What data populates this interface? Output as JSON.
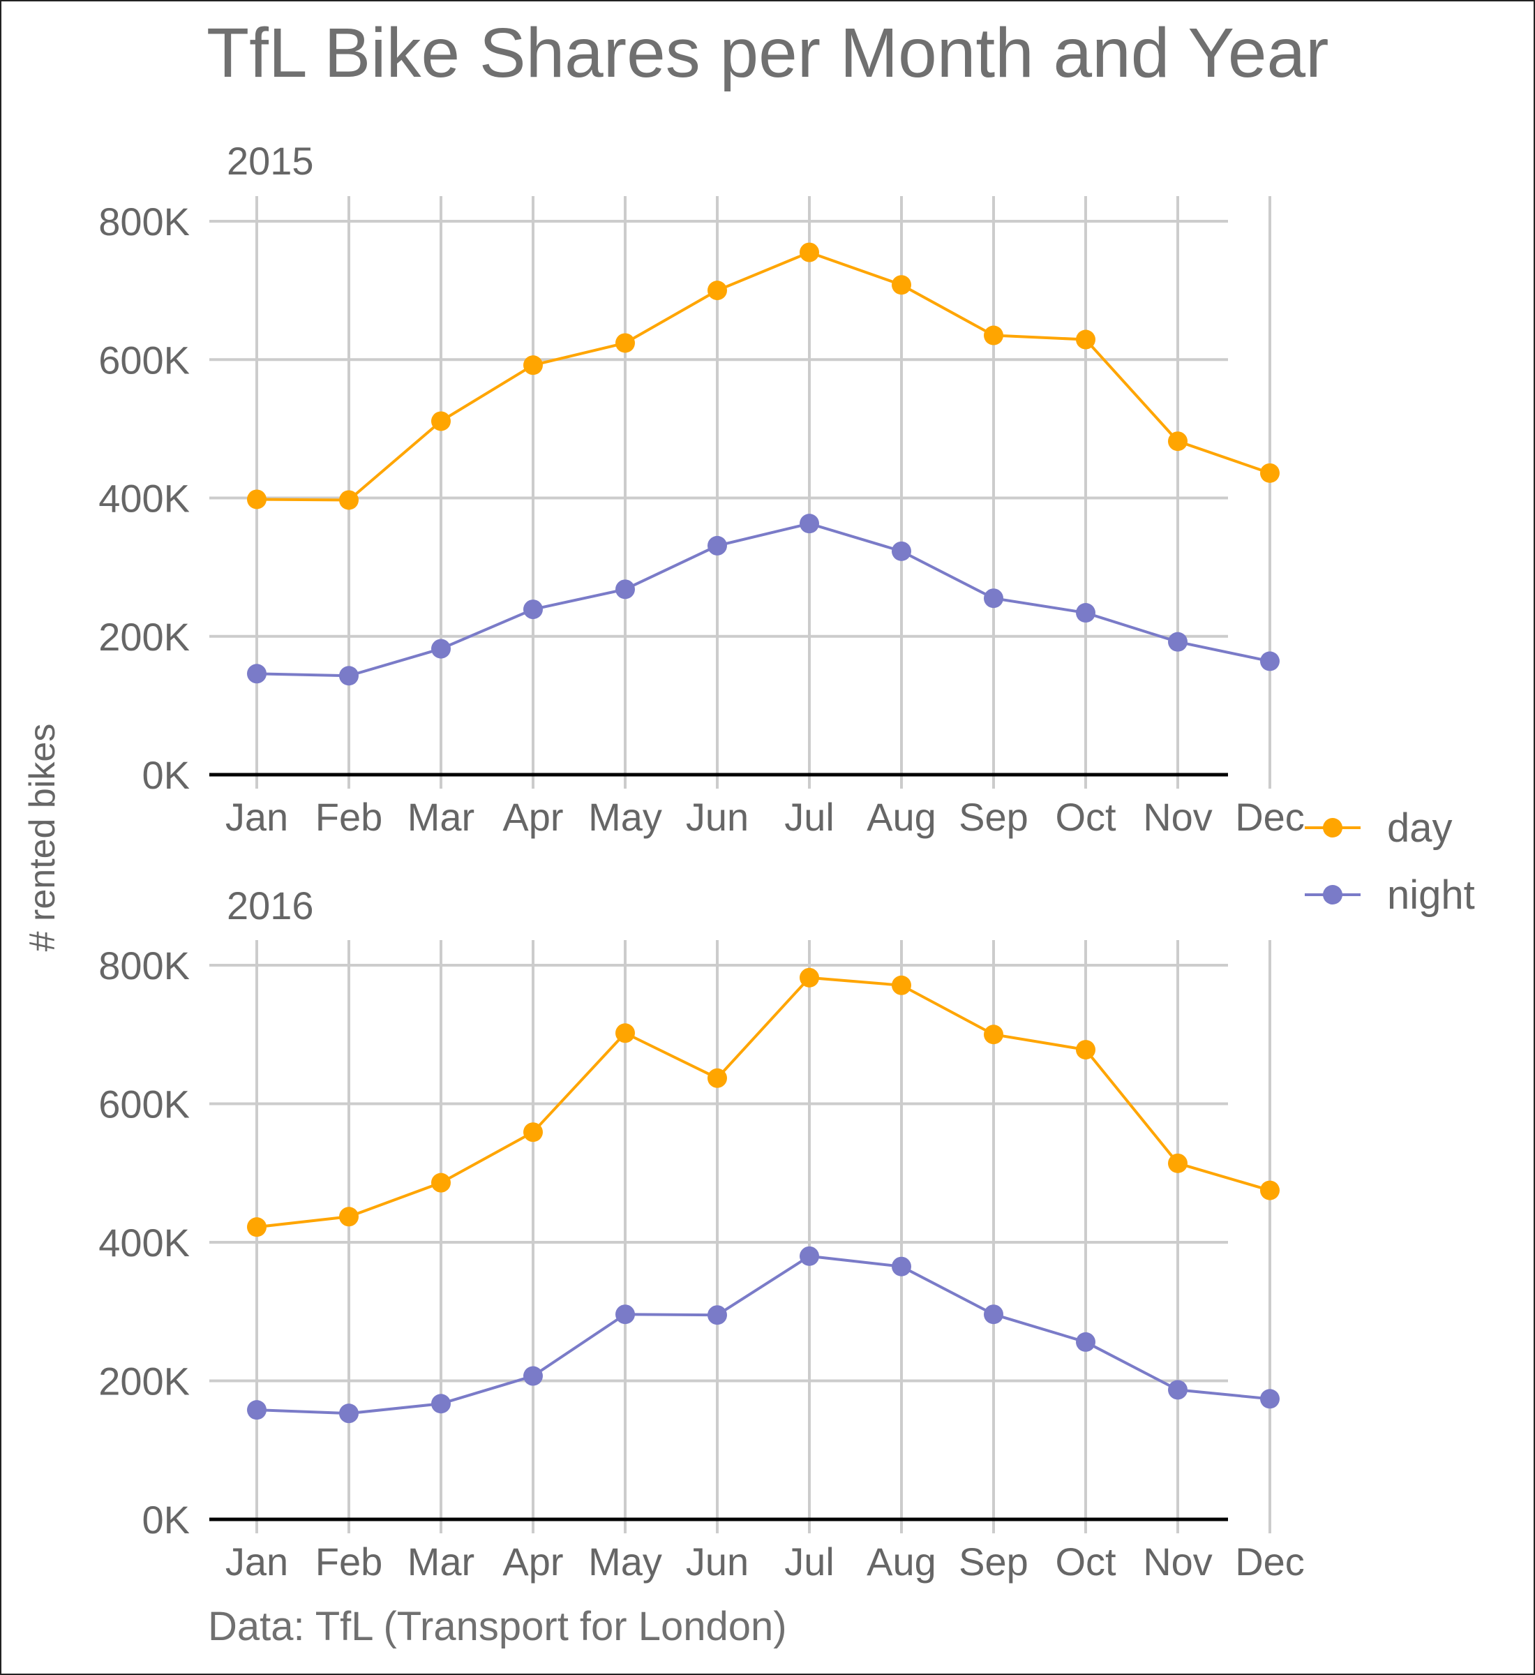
{
  "chart_data": {
    "type": "line",
    "title": "TfL Bike Shares per Month and Year",
    "ylabel": "# rented bikes",
    "caption": "Data: TfL (Transport for London)",
    "categories": [
      "Jan",
      "Feb",
      "Mar",
      "Apr",
      "May",
      "Jun",
      "Jul",
      "Aug",
      "Sep",
      "Oct",
      "Nov",
      "Dec"
    ],
    "ylim": [
      0,
      800000
    ],
    "yticks": [
      {
        "value": 0,
        "label": "0K"
      },
      {
        "value": 200000,
        "label": "200K"
      },
      {
        "value": 400000,
        "label": "400K"
      },
      {
        "value": 600000,
        "label": "600K"
      },
      {
        "value": 800000,
        "label": "800K"
      }
    ],
    "grid": true,
    "legend_position": "right",
    "legend": [
      {
        "name": "day",
        "color": "#FFA500"
      },
      {
        "name": "night",
        "color": "#7A7BC8"
      }
    ],
    "panels": [
      {
        "label": "2015",
        "series": [
          {
            "name": "day",
            "values": [
              398000,
              397000,
              511000,
              592000,
              624000,
              700000,
              755000,
              708000,
              635000,
              629000,
              482000,
              436000
            ]
          },
          {
            "name": "night",
            "values": [
              146000,
              143000,
              182000,
              239000,
              268000,
              331000,
              363000,
              323000,
              255000,
              234000,
              192000,
              164000
            ]
          }
        ]
      },
      {
        "label": "2016",
        "series": [
          {
            "name": "day",
            "values": [
              422000,
              437000,
              486000,
              559000,
              702000,
              637000,
              782000,
              771000,
              700000,
              678000,
              514000,
              475000
            ]
          },
          {
            "name": "night",
            "values": [
              158000,
              153000,
              167000,
              207000,
              296000,
              295000,
              380000,
              365000,
              296000,
              256000,
              187000,
              174000
            ]
          }
        ]
      }
    ]
  }
}
